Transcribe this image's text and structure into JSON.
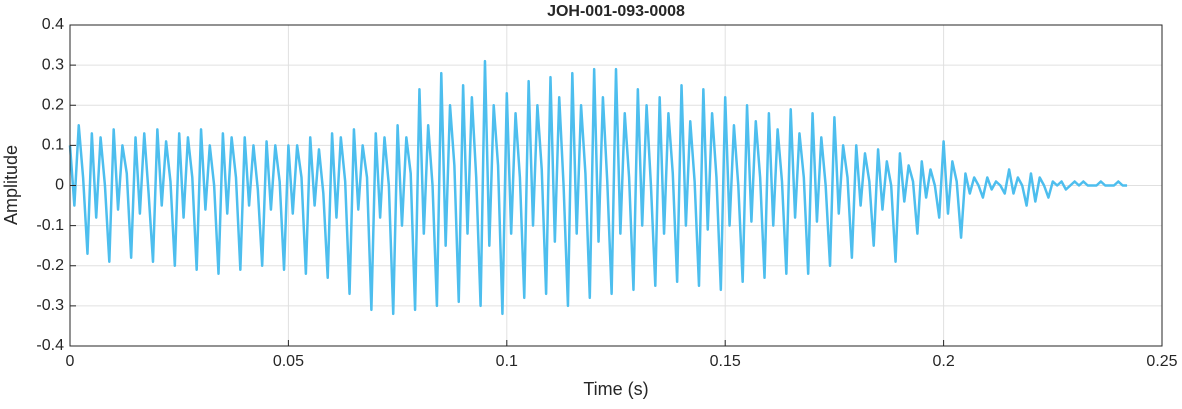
{
  "chart_data": {
    "type": "line",
    "title": "JOH-001-093-0008",
    "xlabel": "Time (s)",
    "ylabel": "Amplitude",
    "color": "#4DBEEE",
    "grid": true,
    "xlim": [
      0,
      0.25
    ],
    "xticks": [
      0,
      0.05,
      0.1,
      0.15,
      0.2,
      0.25
    ],
    "ylim": [
      -0.4,
      0.4
    ],
    "yticks": [
      -0.4,
      -0.3,
      -0.2,
      -0.1,
      0,
      0.1,
      0.2,
      0.3,
      0.4
    ],
    "x": [
      0,
      0.001,
      0.002,
      0.003,
      0.004,
      0.005,
      0.006,
      0.007,
      0.008,
      0.009,
      0.01,
      0.011,
      0.012,
      0.013,
      0.014,
      0.015,
      0.016,
      0.017,
      0.018,
      0.019,
      0.02,
      0.021,
      0.022,
      0.023,
      0.024,
      0.025,
      0.026,
      0.027,
      0.028,
      0.029,
      0.03,
      0.031,
      0.032,
      0.033,
      0.034,
      0.035,
      0.036,
      0.037,
      0.038,
      0.039,
      0.04,
      0.041,
      0.042,
      0.043,
      0.044,
      0.045,
      0.046,
      0.047,
      0.048,
      0.049,
      0.05,
      0.051,
      0.052,
      0.053,
      0.054,
      0.055,
      0.056,
      0.057,
      0.058,
      0.059,
      0.06,
      0.061,
      0.062,
      0.063,
      0.064,
      0.065,
      0.066,
      0.067,
      0.068,
      0.069,
      0.07,
      0.071,
      0.072,
      0.073,
      0.074,
      0.075,
      0.076,
      0.077,
      0.078,
      0.079,
      0.08,
      0.081,
      0.082,
      0.083,
      0.084,
      0.085,
      0.086,
      0.087,
      0.088,
      0.089,
      0.09,
      0.091,
      0.092,
      0.093,
      0.094,
      0.095,
      0.096,
      0.097,
      0.098,
      0.099,
      0.1,
      0.101,
      0.102,
      0.103,
      0.104,
      0.105,
      0.106,
      0.107,
      0.108,
      0.109,
      0.11,
      0.111,
      0.112,
      0.113,
      0.114,
      0.115,
      0.116,
      0.117,
      0.118,
      0.119,
      0.12,
      0.121,
      0.122,
      0.123,
      0.124,
      0.125,
      0.126,
      0.127,
      0.128,
      0.129,
      0.13,
      0.131,
      0.132,
      0.133,
      0.134,
      0.135,
      0.136,
      0.137,
      0.138,
      0.139,
      0.14,
      0.141,
      0.142,
      0.143,
      0.144,
      0.145,
      0.146,
      0.147,
      0.148,
      0.149,
      0.15,
      0.151,
      0.152,
      0.153,
      0.154,
      0.155,
      0.156,
      0.157,
      0.158,
      0.159,
      0.16,
      0.161,
      0.162,
      0.163,
      0.164,
      0.165,
      0.166,
      0.167,
      0.168,
      0.169,
      0.17,
      0.171,
      0.172,
      0.173,
      0.174,
      0.175,
      0.176,
      0.177,
      0.178,
      0.179,
      0.18,
      0.181,
      0.182,
      0.183,
      0.184,
      0.185,
      0.186,
      0.187,
      0.188,
      0.189,
      0.19,
      0.191,
      0.192,
      0.193,
      0.194,
      0.195,
      0.196,
      0.197,
      0.198,
      0.199,
      0.2,
      0.201,
      0.202,
      0.203,
      0.204,
      0.205,
      0.206,
      0.207,
      0.208,
      0.209,
      0.21,
      0.211,
      0.212,
      0.213,
      0.214,
      0.215,
      0.216,
      0.217,
      0.218,
      0.219,
      0.22,
      0.221,
      0.222,
      0.223,
      0.224,
      0.225,
      0.226,
      0.227,
      0.228,
      0.229,
      0.23,
      0.231,
      0.232,
      0.233,
      0.234,
      0.235,
      0.236,
      0.237,
      0.238,
      0.239,
      0.24,
      0.241,
      0.242
    ],
    "values": [
      0.1,
      -0.05,
      0.15,
      0.02,
      -0.17,
      0.13,
      -0.08,
      0.12,
      0,
      -0.19,
      0.14,
      -0.06,
      0.1,
      0.03,
      -0.18,
      0.12,
      -0.07,
      0.13,
      -0.02,
      -0.19,
      0.14,
      -0.05,
      0.11,
      0.01,
      -0.2,
      0.13,
      -0.08,
      0.12,
      0.02,
      -0.21,
      0.14,
      -0.06,
      0.1,
      0,
      -0.22,
      0.13,
      -0.07,
      0.12,
      0.02,
      -0.21,
      0.12,
      -0.05,
      0.1,
      -0.01,
      -0.2,
      0.11,
      -0.06,
      0.1,
      0.01,
      -0.21,
      0.1,
      -0.07,
      0.1,
      0.02,
      -0.22,
      0.12,
      -0.05,
      0.09,
      -0.02,
      -0.23,
      0.13,
      -0.08,
      0.12,
      0.01,
      -0.27,
      0.14,
      -0.06,
      0.1,
      0.02,
      -0.31,
      0.13,
      -0.08,
      0.12,
      0,
      -0.32,
      0.15,
      -0.1,
      0.12,
      0.03,
      -0.31,
      0.24,
      -0.12,
      0.15,
      0,
      -0.3,
      0.28,
      -0.15,
      0.2,
      0.05,
      -0.29,
      0.25,
      -0.12,
      0.22,
      0.02,
      -0.3,
      0.31,
      -0.15,
      0.2,
      0.05,
      -0.32,
      0.23,
      -0.12,
      0.18,
      0.02,
      -0.28,
      0.26,
      -0.1,
      0.2,
      0.04,
      -0.27,
      0.27,
      -0.14,
      0.22,
      0,
      -0.3,
      0.28,
      -0.12,
      0.2,
      0.03,
      -0.28,
      0.29,
      -0.14,
      0.22,
      0.01,
      -0.27,
      0.29,
      -0.12,
      0.18,
      0.02,
      -0.26,
      0.24,
      -0.1,
      0.2,
      0,
      -0.25,
      0.22,
      -0.12,
      0.18,
      0.03,
      -0.24,
      0.25,
      -0.1,
      0.16,
      0.01,
      -0.25,
      0.24,
      -0.11,
      0.18,
      0.02,
      -0.26,
      0.22,
      -0.1,
      0.15,
      0,
      -0.24,
      0.2,
      -0.09,
      0.16,
      0.02,
      -0.23,
      0.18,
      -0.1,
      0.14,
      0.01,
      -0.22,
      0.19,
      -0.08,
      0.13,
      0.02,
      -0.22,
      0.18,
      -0.09,
      0.12,
      0,
      -0.2,
      0.17,
      -0.07,
      0.1,
      0.02,
      -0.18,
      0.1,
      -0.05,
      0.08,
      0.01,
      -0.15,
      0.09,
      -0.06,
      0.06,
      0,
      -0.19,
      0.08,
      -0.04,
      0.05,
      0.01,
      -0.12,
      0.06,
      -0.03,
      0.04,
      0,
      -0.08,
      0.11,
      -0.07,
      0.06,
      0.01,
      -0.13,
      0.03,
      -0.02,
      0.02,
      0,
      -0.03,
      0.02,
      -0.01,
      0.01,
      0,
      -0.02,
      0.04,
      -0.02,
      0.02,
      0,
      -0.05,
      0.03,
      -0.04,
      0.02,
      0,
      -0.03,
      0.01,
      0,
      0.01,
      -0.01,
      0,
      0.01,
      0,
      0.01,
      0,
      0,
      0,
      0.01,
      0,
      0,
      0,
      0.01,
      0,
      0
    ]
  }
}
